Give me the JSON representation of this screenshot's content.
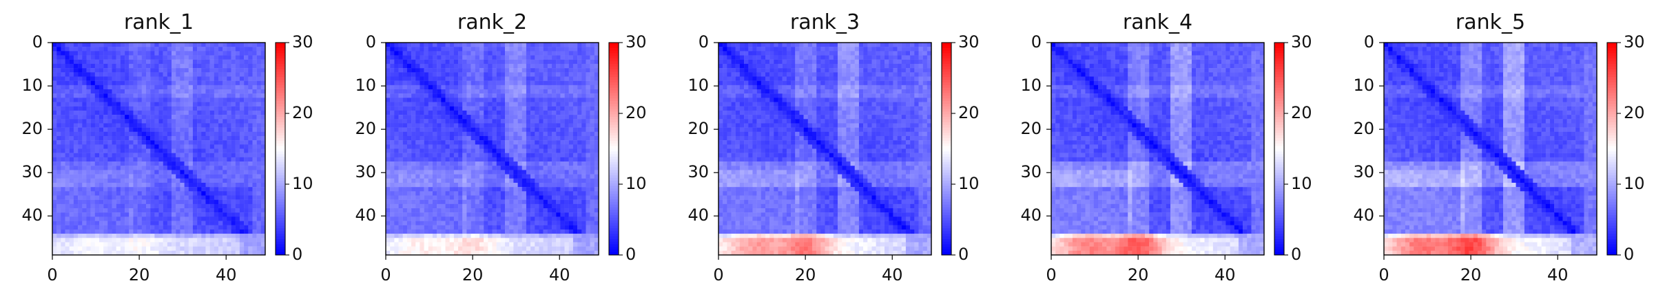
{
  "chart_data": [
    {
      "type": "heatmap",
      "title": "rank_1",
      "matrix_size": 50,
      "xlim": [
        0,
        49
      ],
      "ylim": [
        49,
        0
      ],
      "x_ticks": [
        0,
        20,
        40
      ],
      "y_ticks": [
        0,
        10,
        20,
        30,
        40
      ],
      "colorbar": {
        "min": 0,
        "max": 30,
        "ticks": [
          0,
          10,
          20,
          30
        ],
        "colormap": "bwr"
      },
      "values": {
        "diag": 1,
        "blue_base": 4,
        "mid_band": 9,
        "bottom_rows": 15,
        "bottom_row_start": 45
      }
    },
    {
      "type": "heatmap",
      "title": "rank_2",
      "matrix_size": 50,
      "xlim": [
        0,
        49
      ],
      "ylim": [
        49,
        0
      ],
      "x_ticks": [
        0,
        20,
        40
      ],
      "y_ticks": [
        0,
        10,
        20,
        30,
        40
      ],
      "colorbar": {
        "min": 0,
        "max": 30,
        "ticks": [
          0,
          10,
          20,
          30
        ],
        "colormap": "bwr"
      },
      "values": {
        "diag": 1,
        "blue_base": 4,
        "mid_band": 9,
        "bottom_rows": 17,
        "bottom_row_start": 45
      }
    },
    {
      "type": "heatmap",
      "title": "rank_3",
      "matrix_size": 50,
      "xlim": [
        0,
        49
      ],
      "ylim": [
        49,
        0
      ],
      "x_ticks": [
        0,
        20,
        40
      ],
      "y_ticks": [
        0,
        10,
        20,
        30,
        40
      ],
      "colorbar": {
        "min": 0,
        "max": 30,
        "ticks": [
          0,
          10,
          20,
          30
        ],
        "colormap": "bwr"
      },
      "values": {
        "diag": 1,
        "blue_base": 4,
        "mid_band": 10,
        "bottom_rows": 23,
        "bottom_row_start": 45
      }
    },
    {
      "type": "heatmap",
      "title": "rank_4",
      "matrix_size": 50,
      "xlim": [
        0,
        49
      ],
      "ylim": [
        49,
        0
      ],
      "x_ticks": [
        0,
        20,
        40
      ],
      "y_ticks": [
        0,
        10,
        20,
        30,
        40
      ],
      "colorbar": {
        "min": 0,
        "max": 30,
        "ticks": [
          0,
          10,
          20,
          30
        ],
        "colormap": "bwr"
      },
      "values": {
        "diag": 1,
        "blue_base": 4,
        "mid_band": 11,
        "bottom_rows": 25,
        "bottom_row_start": 45
      }
    },
    {
      "type": "heatmap",
      "title": "rank_5",
      "matrix_size": 50,
      "xlim": [
        0,
        49
      ],
      "ylim": [
        49,
        0
      ],
      "x_ticks": [
        0,
        20,
        40
      ],
      "y_ticks": [
        0,
        10,
        20,
        30,
        40
      ],
      "colorbar": {
        "min": 0,
        "max": 30,
        "ticks": [
          0,
          10,
          20,
          30
        ],
        "colormap": "bwr"
      },
      "values": {
        "diag": 1,
        "blue_base": 4,
        "mid_band": 12,
        "bottom_rows": 26,
        "bottom_row_start": 45
      }
    }
  ],
  "colors": {
    "low": "#0000ff",
    "mid": "#ffffff",
    "high": "#ff0000",
    "axis": "#000000",
    "text": "#111111"
  }
}
